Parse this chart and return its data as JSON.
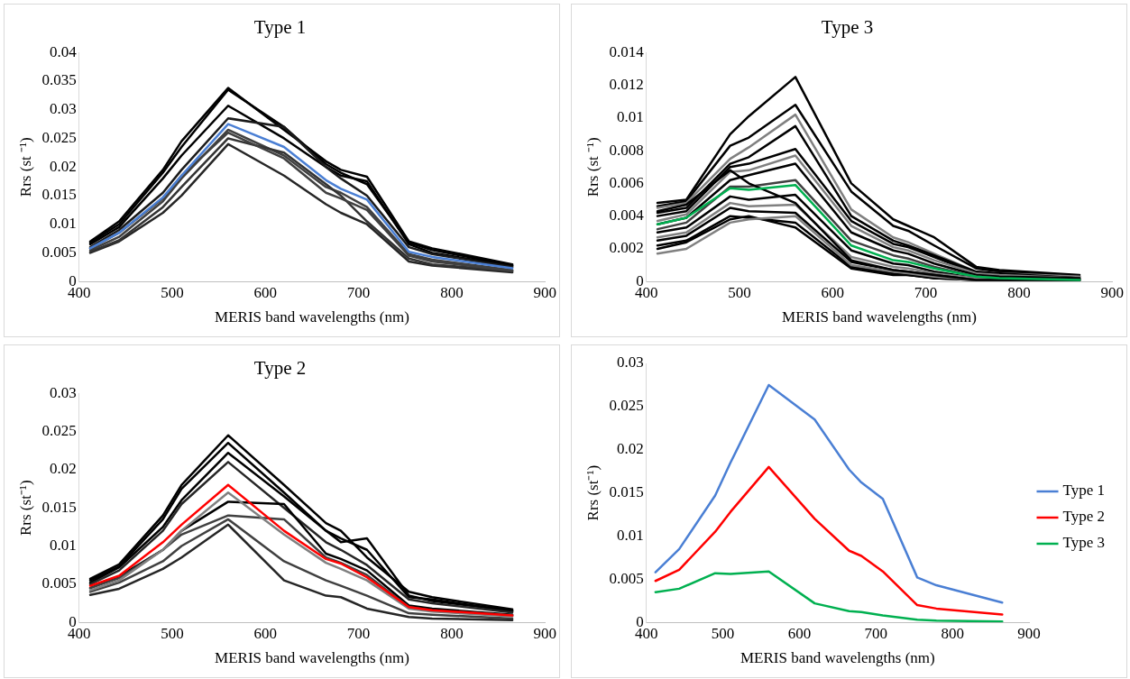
{
  "chart_data": [
    {
      "type": "line",
      "title": "Type 1",
      "xlabel": "MERIS band wavelengths (nm)",
      "ylabel": "Rrs (st ⁻¹)",
      "x": [
        412,
        443,
        490,
        510,
        560,
        620,
        665,
        681,
        709,
        754,
        779,
        865
      ],
      "xlim": [
        400,
        900
      ],
      "xticks": [
        400,
        500,
        600,
        700,
        800,
        900
      ],
      "ylim": [
        0,
        0.04
      ],
      "yticks": [
        0,
        0.005,
        0.01,
        0.015,
        0.02,
        0.025,
        0.03,
        0.035,
        0.04
      ],
      "grid": false,
      "legend": false,
      "marker": "none",
      "line_style": "solid",
      "series": [
        {
          "color": "#000000",
          "values": [
            0.007,
            0.0105,
            0.0195,
            0.0245,
            0.0338,
            0.0265,
            0.021,
            0.0195,
            0.0183,
            0.007,
            0.0058,
            0.003
          ]
        },
        {
          "color": "#000000",
          "values": [
            0.0068,
            0.01,
            0.019,
            0.0235,
            0.0335,
            0.027,
            0.0205,
            0.019,
            0.017,
            0.0068,
            0.0055,
            0.0028
          ]
        },
        {
          "color": "#000000",
          "values": [
            0.0065,
            0.0095,
            0.018,
            0.022,
            0.0307,
            0.025,
            0.02,
            0.0185,
            0.0175,
            0.0065,
            0.005,
            0.0027
          ]
        },
        {
          "color": "#1a1a1a",
          "values": [
            0.006,
            0.009,
            0.0155,
            0.0195,
            0.0285,
            0.027,
            0.02,
            0.018,
            0.015,
            0.006,
            0.0048,
            0.0025
          ]
        },
        {
          "color": "#404040",
          "values": [
            0.0055,
            0.0078,
            0.014,
            0.018,
            0.0265,
            0.022,
            0.0165,
            0.0155,
            0.013,
            0.0048,
            0.0038,
            0.002
          ]
        },
        {
          "color": "#262626",
          "values": [
            0.005,
            0.007,
            0.012,
            0.015,
            0.024,
            0.0185,
            0.0135,
            0.012,
            0.01,
            0.0035,
            0.0028,
            0.0016
          ]
        },
        {
          "color": "#333333",
          "values": [
            0.0052,
            0.0072,
            0.013,
            0.0165,
            0.025,
            0.0225,
            0.017,
            0.015,
            0.0105,
            0.004,
            0.003,
            0.0018
          ]
        },
        {
          "color": "#404040",
          "values": [
            0.0058,
            0.0085,
            0.0145,
            0.0185,
            0.026,
            0.0215,
            0.0155,
            0.0145,
            0.0125,
            0.0045,
            0.0035,
            0.0019
          ]
        },
        {
          "color": "#4a7fd4",
          "values": [
            0.0058,
            0.0085,
            0.0147,
            0.0185,
            0.0275,
            0.0235,
            0.0177,
            0.0162,
            0.0143,
            0.0052,
            0.0043,
            0.0023
          ]
        }
      ]
    },
    {
      "type": "line",
      "title": "Type 3",
      "xlabel": "MERIS band wavelengths (nm)",
      "ylabel": "Rrs (st ⁻¹)",
      "x": [
        412,
        443,
        490,
        510,
        560,
        620,
        665,
        681,
        709,
        754,
        779,
        865
      ],
      "xlim": [
        400,
        900
      ],
      "xticks": [
        400,
        500,
        600,
        700,
        800,
        900
      ],
      "ylim": [
        0,
        0.014
      ],
      "yticks": [
        0,
        0.002,
        0.004,
        0.006,
        0.008,
        0.01,
        0.012,
        0.014
      ],
      "grid": false,
      "legend": false,
      "marker": "none",
      "line_style": "solid",
      "series": [
        {
          "color": "#000000",
          "values": [
            0.0048,
            0.005,
            0.009,
            0.0101,
            0.0125,
            0.006,
            0.0038,
            0.0034,
            0.0027,
            0.0009,
            0.0007,
            0.0004
          ]
        },
        {
          "color": "#000000",
          "values": [
            0.0046,
            0.0049,
            0.0083,
            0.0088,
            0.0108,
            0.0055,
            0.0034,
            0.0031,
            0.0022,
            0.0008,
            0.0006,
            0.0003
          ]
        },
        {
          "color": "#808080",
          "values": [
            0.0045,
            0.0048,
            0.0075,
            0.0082,
            0.0102,
            0.0044,
            0.0027,
            0.0024,
            0.0017,
            0.0006,
            0.0005,
            0.0003
          ]
        },
        {
          "color": "#000000",
          "values": [
            0.0042,
            0.0045,
            0.0072,
            0.0076,
            0.0095,
            0.004,
            0.0025,
            0.0022,
            0.0016,
            0.0006,
            0.0005,
            0.0002
          ]
        },
        {
          "color": "#000000",
          "values": [
            0.004,
            0.0043,
            0.007,
            0.0072,
            0.0081,
            0.0037,
            0.0023,
            0.0021,
            0.0015,
            0.0005,
            0.0004,
            0.0002
          ]
        },
        {
          "color": "#808080",
          "values": [
            0.0037,
            0.0041,
            0.0067,
            0.0068,
            0.0077,
            0.0034,
            0.0021,
            0.0019,
            0.0013,
            0.0005,
            0.0004,
            0.0002
          ]
        },
        {
          "color": "#000000",
          "values": [
            0.0035,
            0.0039,
            0.0062,
            0.0065,
            0.0072,
            0.003,
            0.0019,
            0.0017,
            0.0011,
            0.0004,
            0.0003,
            0.0002
          ]
        },
        {
          "color": "#404040",
          "values": [
            0.0032,
            0.0036,
            0.0058,
            0.0058,
            0.0062,
            0.0025,
            0.0016,
            0.0014,
            0.0009,
            0.0003,
            0.0002,
            0.0001
          ]
        },
        {
          "color": "#000000",
          "values": [
            0.003,
            0.0033,
            0.0052,
            0.005,
            0.0053,
            0.0019,
            0.0011,
            0.001,
            0.0006,
            0.0002,
            0.0002,
            0.0001
          ]
        },
        {
          "color": "#808080",
          "values": [
            0.0027,
            0.003,
            0.0048,
            0.0046,
            0.0047,
            0.0015,
            0.0009,
            0.0008,
            0.0005,
            0.0002,
            0.0001,
            0.0001
          ]
        },
        {
          "color": "#000000",
          "values": [
            0.0025,
            0.0028,
            0.0045,
            0.0043,
            0.0042,
            0.0012,
            0.0007,
            0.0006,
            0.0004,
            0.0001,
            0.0001,
            0.0001
          ]
        },
        {
          "color": "#000000",
          "values": [
            0.0022,
            0.0025,
            0.004,
            0.0039,
            0.0036,
            0.0009,
            0.0005,
            0.0004,
            0.0002,
            0.0001,
            0.0001,
            0.0001
          ]
        },
        {
          "color": "#000000",
          "values": [
            0.002,
            0.0024,
            0.0038,
            0.004,
            0.0033,
            0.0008,
            0.0004,
            0.0004,
            0.0002,
            0.0001,
            0.0001,
            0.0001
          ]
        },
        {
          "color": "#808080",
          "values": [
            0.0017,
            0.002,
            0.0036,
            0.0038,
            0.004,
            0.001,
            0.0006,
            0.0005,
            0.0003,
            0.0001,
            0.0001,
            0.0001
          ]
        },
        {
          "color": "#000000",
          "values": [
            0.0043,
            0.0047,
            0.0068,
            0.006,
            0.0048,
            0.0013,
            0.0007,
            0.0006,
            0.0004,
            0.0001,
            0.0001,
            0.0001
          ]
        },
        {
          "color": "#00b050",
          "values": [
            0.0035,
            0.0039,
            0.0057,
            0.0056,
            0.0059,
            0.0022,
            0.0013,
            0.0012,
            0.0008,
            0.0003,
            0.0002,
            0.0001
          ]
        }
      ]
    },
    {
      "type": "line",
      "title": "Type 2",
      "xlabel": "MERIS band wavelengths (nm)",
      "ylabel": "Rrs (st⁻¹)",
      "x": [
        412,
        443,
        490,
        510,
        560,
        620,
        665,
        681,
        709,
        754,
        779,
        865
      ],
      "xlim": [
        400,
        900
      ],
      "xticks": [
        400,
        500,
        600,
        700,
        800,
        900
      ],
      "ylim": [
        0,
        0.03
      ],
      "yticks": [
        0,
        0.005,
        0.01,
        0.015,
        0.02,
        0.025,
        0.03
      ],
      "grid": false,
      "legend": false,
      "marker": "none",
      "line_style": "solid",
      "series": [
        {
          "color": "#000000",
          "values": [
            0.0057,
            0.0076,
            0.014,
            0.018,
            0.0245,
            0.018,
            0.013,
            0.012,
            0.0085,
            0.004,
            0.0033,
            0.0017
          ]
        },
        {
          "color": "#000000",
          "values": [
            0.0055,
            0.0073,
            0.0135,
            0.0175,
            0.0235,
            0.017,
            0.012,
            0.011,
            0.0095,
            0.0033,
            0.003,
            0.0015
          ]
        },
        {
          "color": "#000000",
          "values": [
            0.0052,
            0.0072,
            0.0125,
            0.016,
            0.0222,
            0.0165,
            0.012,
            0.0105,
            0.011,
            0.0035,
            0.0028,
            0.0015
          ]
        },
        {
          "color": "#262626",
          "values": [
            0.005,
            0.0068,
            0.012,
            0.0155,
            0.021,
            0.015,
            0.0105,
            0.0095,
            0.0075,
            0.003,
            0.0025,
            0.0013
          ]
        },
        {
          "color": "#000000",
          "values": [
            0.0045,
            0.006,
            0.0095,
            0.012,
            0.0158,
            0.0155,
            0.009,
            0.0083,
            0.0068,
            0.0022,
            0.0018,
            0.001
          ]
        },
        {
          "color": "#404040",
          "values": [
            0.0045,
            0.0058,
            0.0095,
            0.0115,
            0.014,
            0.0135,
            0.0085,
            0.0078,
            0.0062,
            0.002,
            0.0016,
            0.0009
          ]
        },
        {
          "color": "#404040",
          "values": [
            0.004,
            0.0052,
            0.008,
            0.01,
            0.0135,
            0.008,
            0.0055,
            0.0048,
            0.0035,
            0.0012,
            0.001,
            0.0005
          ]
        },
        {
          "color": "#262626",
          "values": [
            0.0036,
            0.0044,
            0.007,
            0.0085,
            0.0128,
            0.0055,
            0.0035,
            0.0033,
            0.0018,
            0.0007,
            0.0005,
            0.0003
          ]
        },
        {
          "color": "#808080",
          "values": [
            0.0042,
            0.0055,
            0.0095,
            0.012,
            0.017,
            0.0115,
            0.0078,
            0.007,
            0.0055,
            0.0018,
            0.0014,
            0.0008
          ]
        },
        {
          "color": "#ff0000",
          "values": [
            0.0048,
            0.0061,
            0.0105,
            0.0128,
            0.018,
            0.012,
            0.0083,
            0.0077,
            0.0059,
            0.002,
            0.0016,
            0.0009
          ]
        }
      ]
    },
    {
      "type": "line",
      "xlabel": "MERIS band wavelengths (nm)",
      "ylabel": "Rrs (st⁻¹)",
      "x": [
        412,
        443,
        490,
        510,
        560,
        620,
        665,
        681,
        709,
        754,
        779,
        865
      ],
      "xlim": [
        400,
        900
      ],
      "xticks": [
        400,
        500,
        600,
        700,
        800,
        900
      ],
      "ylim": [
        0,
        0.03
      ],
      "yticks": [
        0,
        0.005,
        0.01,
        0.015,
        0.02,
        0.025,
        0.03
      ],
      "grid": false,
      "legend": "right",
      "marker": "none",
      "line_style": "solid",
      "series": [
        {
          "name": "Type 1",
          "color": "#4a7fd4",
          "values": [
            0.0058,
            0.0085,
            0.0147,
            0.0185,
            0.0275,
            0.0235,
            0.0177,
            0.0162,
            0.0143,
            0.0052,
            0.0043,
            0.0023
          ]
        },
        {
          "name": "Type 2",
          "color": "#ff0000",
          "values": [
            0.0048,
            0.0061,
            0.0105,
            0.0128,
            0.018,
            0.012,
            0.0083,
            0.0077,
            0.0059,
            0.002,
            0.0016,
            0.0009
          ]
        },
        {
          "name": "Type 3",
          "color": "#00b050",
          "values": [
            0.0035,
            0.0039,
            0.0057,
            0.0056,
            0.0059,
            0.0022,
            0.0013,
            0.0012,
            0.0008,
            0.0003,
            0.0002,
            0.0001
          ]
        }
      ]
    }
  ]
}
